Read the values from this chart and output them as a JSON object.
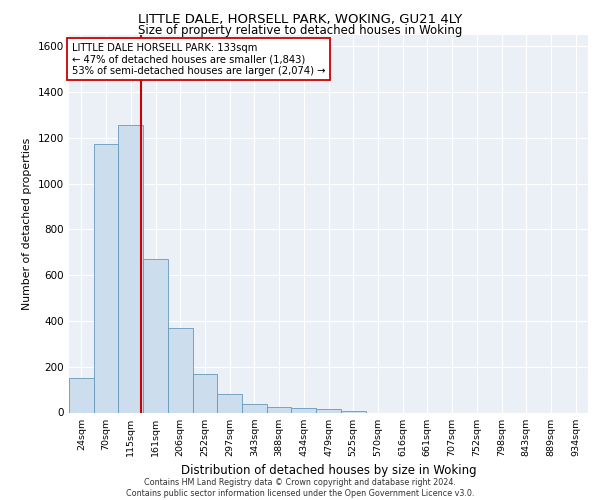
{
  "title_line1": "LITTLE DALE, HORSELL PARK, WOKING, GU21 4LY",
  "title_line2": "Size of property relative to detached houses in Woking",
  "xlabel": "Distribution of detached houses by size in Woking",
  "ylabel": "Number of detached properties",
  "categories": [
    "24sqm",
    "70sqm",
    "115sqm",
    "161sqm",
    "206sqm",
    "252sqm",
    "297sqm",
    "343sqm",
    "388sqm",
    "434sqm",
    "479sqm",
    "525sqm",
    "570sqm",
    "616sqm",
    "661sqm",
    "707sqm",
    "752sqm",
    "798sqm",
    "843sqm",
    "889sqm",
    "934sqm"
  ],
  "values": [
    150,
    1175,
    1255,
    670,
    370,
    170,
    80,
    35,
    25,
    20,
    15,
    5,
    0,
    0,
    0,
    0,
    0,
    0,
    0,
    0,
    0
  ],
  "bar_color": "#ccdded",
  "bar_edge_color": "#6699bb",
  "reference_line_color": "#cc0000",
  "annotation_text": "LITTLE DALE HORSELL PARK: 133sqm\n← 47% of detached houses are smaller (1,843)\n53% of semi-detached houses are larger (2,074) →",
  "annotation_box_color": "white",
  "annotation_box_edge": "#cc0000",
  "ylim": [
    0,
    1650
  ],
  "yticks": [
    0,
    200,
    400,
    600,
    800,
    1000,
    1200,
    1400,
    1600
  ],
  "background_color": "#eaf0f6",
  "grid_color": "#ffffff",
  "footer_line1": "Contains HM Land Registry data © Crown copyright and database right 2024.",
  "footer_line2": "Contains public sector information licensed under the Open Government Licence v3.0."
}
